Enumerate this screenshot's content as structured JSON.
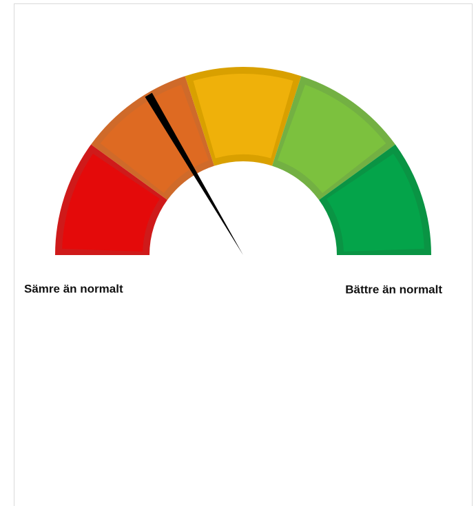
{
  "chart_data": {
    "type": "gauge",
    "bins": [
      0,
      20,
      40,
      60,
      80,
      100
    ],
    "colors": [
      "#e40a0a",
      "#de6a22",
      "#efb10a",
      "#7cc13e",
      "#04a44a"
    ],
    "edge_colors": [
      "#cf1a1a",
      "#cf6a2a",
      "#d9a000",
      "#73b043",
      "#0a9444"
    ],
    "ylim": [
      0,
      100
    ],
    "value": 33,
    "min_label": "Sämre än normalt",
    "max_label": "Bättre än normalt"
  }
}
